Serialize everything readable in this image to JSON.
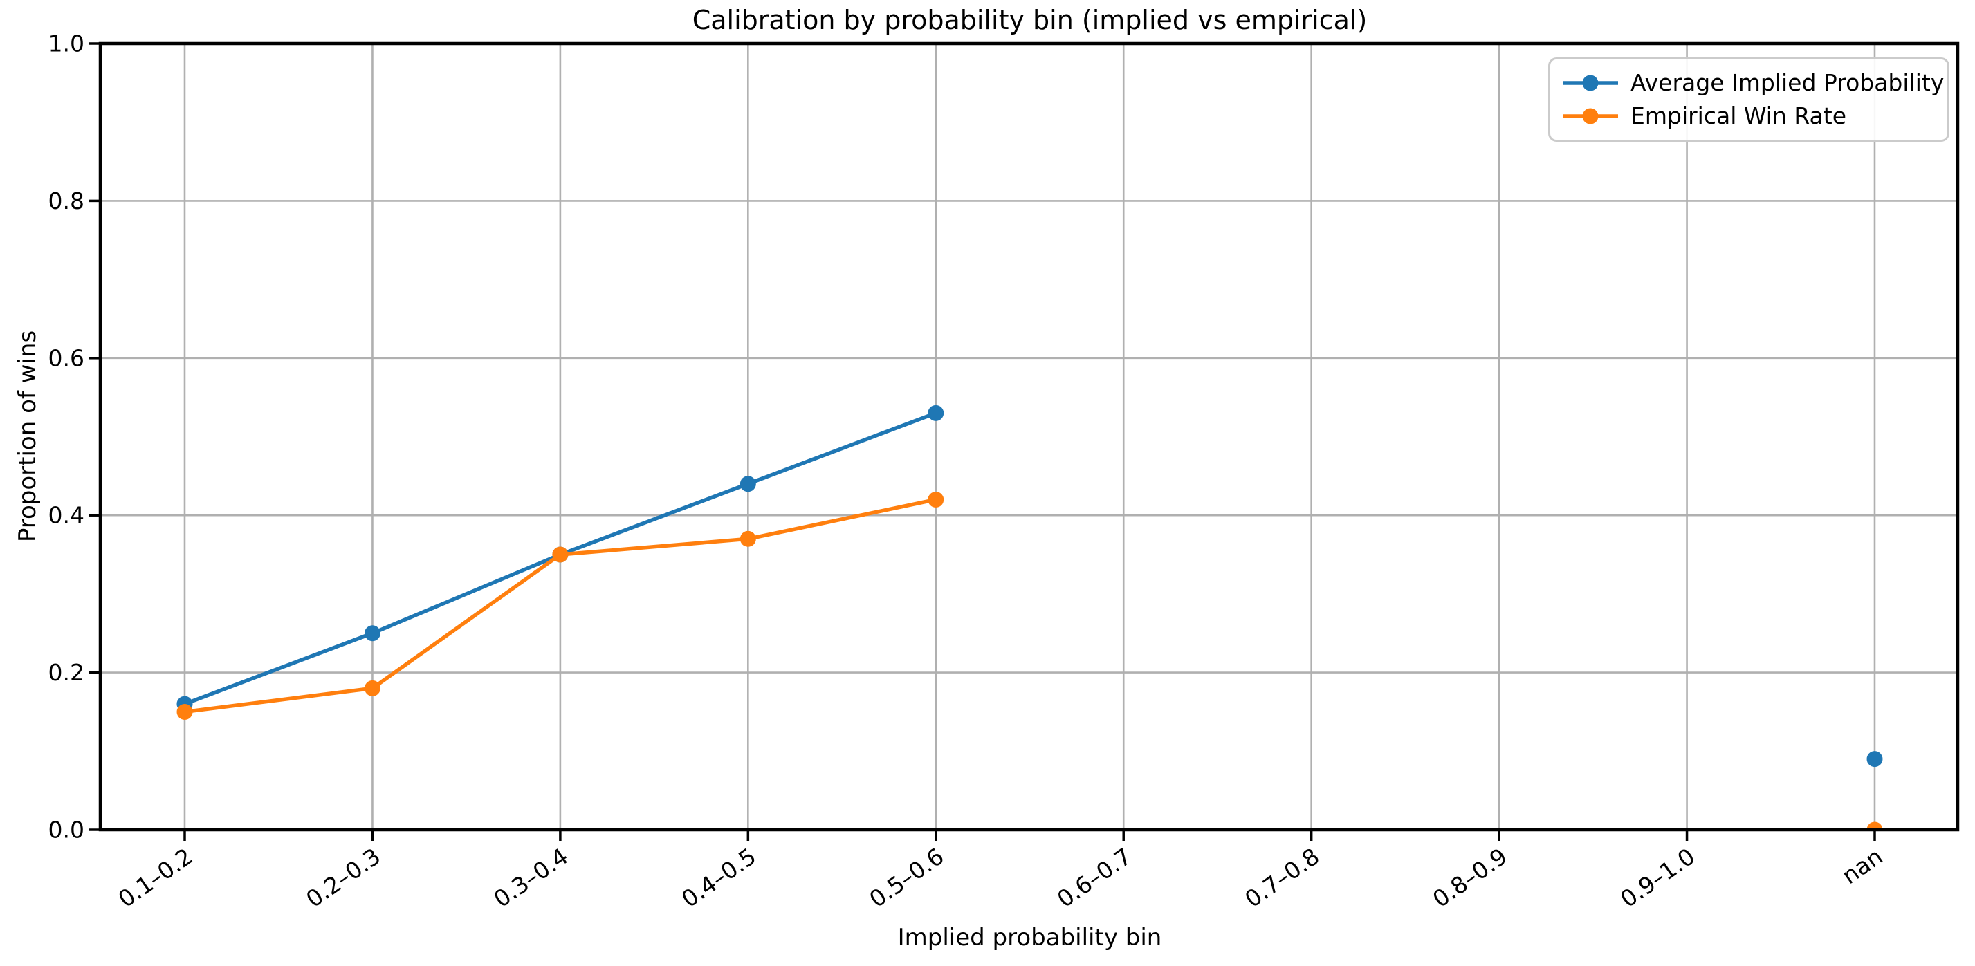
{
  "figure": {
    "background": "#ffffff"
  },
  "chart_data": {
    "type": "line",
    "title": "Calibration by probability bin (implied vs empirical)",
    "xlabel": "Implied probability bin",
    "ylabel": "Proportion of wins",
    "categories": [
      "0.1–0.2",
      "0.2–0.3",
      "0.3–0.4",
      "0.4–0.5",
      "0.5–0.6",
      "0.6–0.7",
      "0.7–0.8",
      "0.8–0.9",
      "0.9–1.0",
      "nan"
    ],
    "series": [
      {
        "name": "Average Implied Probability",
        "color": "#1f77b4",
        "marker": "circle",
        "values": [
          0.16,
          0.25,
          0.35,
          0.44,
          0.53,
          null,
          null,
          null,
          null,
          0.09
        ]
      },
      {
        "name": "Empirical Win Rate",
        "color": "#ff7f0e",
        "marker": "circle",
        "values": [
          0.15,
          0.18,
          0.35,
          0.37,
          0.42,
          null,
          null,
          null,
          null,
          0.0
        ]
      }
    ],
    "ylim": [
      0.0,
      1.0
    ],
    "yticks": [
      0.0,
      0.2,
      0.4,
      0.6,
      0.8,
      1.0
    ],
    "ytick_labels": [
      "0.0",
      "0.2",
      "0.4",
      "0.6",
      "0.8",
      "1.0"
    ],
    "grid": true,
    "grid_color": "#b0b0b0",
    "spine_color": "#000000",
    "tick_color": "#000000",
    "legend_position": "upper right",
    "x_tick_rotation_deg": 35
  }
}
